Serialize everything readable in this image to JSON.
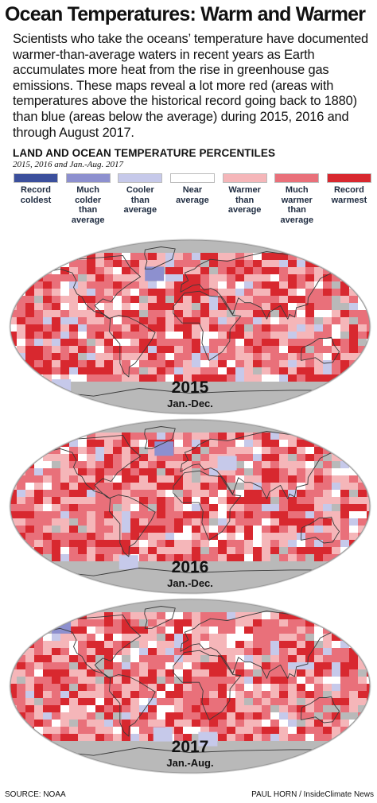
{
  "title": "Ocean Temperatures: Warm and Warmer",
  "intro": "Scientists who take the oceans’ temperature have documented warmer-than-average waters in recent years as Earth accumulates more heat from the rise in greenhouse gas emissions. These maps reveal a lot more red (areas with temperatures above the historical record going back to 1880) than blue (areas below the average) during 2015, 2016 and through August 2017.",
  "legend": {
    "title": "LAND AND OCEAN TEMPERATURE PERCENTILES",
    "subtitle": "2015, 2016 and Jan.-Aug. 2017",
    "items": [
      {
        "label": "Record coldest",
        "color": "#3b4f9c"
      },
      {
        "label": "Much colder than average",
        "color": "#8d90cf"
      },
      {
        "label": "Cooler than average",
        "color": "#c6c9ea"
      },
      {
        "label": "Near average",
        "color": "#ffffff"
      },
      {
        "label": "Warmer than average",
        "color": "#f5b6b9"
      },
      {
        "label": "Much warmer than average",
        "color": "#e9707a"
      },
      {
        "label": "Record warmest",
        "color": "#d8282f"
      }
    ]
  },
  "maps": [
    {
      "year": "2015",
      "range": "Jan.-Dec."
    },
    {
      "year": "2016",
      "range": "Jan.-Dec."
    },
    {
      "year": "2017",
      "range": "Jan.-Aug."
    }
  ],
  "watermark": [
    "inside",
    "climate",
    "news"
  ],
  "footer": {
    "source": "SOURCE: NOAA",
    "credit": "PAUL HORN / InsideClimate News"
  },
  "colors": {
    "no_data": "#b9b9b9",
    "map_frame": "#d5d5d5",
    "land_outline": "#3a3a3a"
  }
}
